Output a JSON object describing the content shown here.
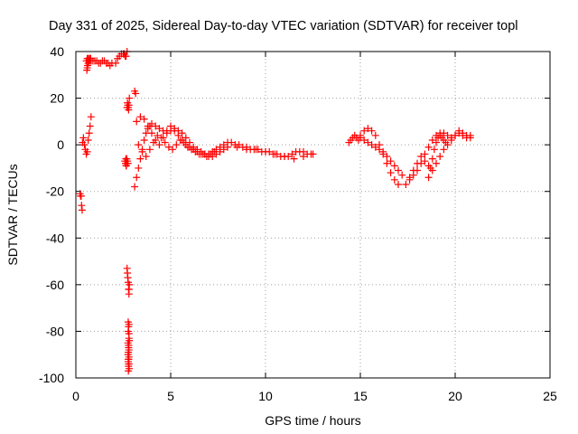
{
  "chart_data": {
    "type": "scatter",
    "title": "Day 331 of 2025, Sidereal Day-to-day VTEC variation (SDTVAR) for receiver topl",
    "xlabel": "GPS time / hours",
    "ylabel": "SDTVAR / TECUs",
    "xlim": [
      0,
      25
    ],
    "ylim": [
      -100,
      40
    ],
    "xticks": [
      "0",
      "5",
      "10",
      "15",
      "20",
      "25"
    ],
    "yticks": [
      "40",
      "20",
      "0",
      "-20",
      "-40",
      "-60",
      "-80",
      "-100"
    ],
    "grid": true,
    "marker": "+",
    "color": "#ff0000",
    "series": [
      {
        "name": "SDTVAR",
        "x": [
          0.22,
          0.25,
          0.28,
          0.3,
          0.33,
          0.35,
          0.4,
          0.45,
          0.5,
          0.55,
          0.6,
          0.65,
          0.7,
          0.75,
          0.8,
          0.58,
          0.6,
          0.62,
          0.65,
          0.68,
          0.7,
          0.72,
          0.75,
          0.78,
          0.55,
          0.6,
          0.65,
          0.72,
          0.8,
          0.9,
          1.0,
          1.1,
          1.2,
          1.3,
          1.4,
          1.5,
          1.6,
          1.7,
          1.8,
          1.9,
          2.1,
          2.2,
          2.3,
          2.4,
          2.5,
          2.55,
          2.6,
          2.65,
          2.7,
          2.58,
          2.62,
          2.65,
          2.68,
          2.72,
          2.75,
          2.78,
          2.8,
          2.82,
          2.64,
          2.66,
          2.7,
          2.72,
          2.74,
          2.76,
          2.7,
          2.72,
          2.74,
          2.76,
          2.78,
          2.8,
          2.82,
          2.76,
          2.78,
          2.8,
          2.82,
          2.78,
          2.8,
          2.75,
          2.77,
          2.79,
          2.81,
          2.77,
          2.8,
          2.78,
          2.76,
          2.8,
          2.76,
          2.78,
          2.8,
          2.78,
          2.75,
          2.8,
          2.77,
          2.79,
          3.1,
          3.15,
          3.1,
          3.2,
          3.3,
          3.4,
          3.5,
          3.6,
          3.7,
          3.8,
          3.9,
          4.0,
          4.2,
          4.4,
          4.6,
          4.8,
          5.0,
          5.2,
          5.4,
          5.6,
          5.8,
          6.0,
          6.2,
          6.4,
          6.6,
          6.8,
          7.0,
          7.2,
          7.4,
          7.6,
          7.8,
          8.0,
          8.2,
          8.4,
          8.6,
          8.8,
          9.0,
          9.2,
          9.4,
          9.6,
          9.8,
          10.0,
          10.2,
          10.4,
          10.6,
          10.8,
          11.0,
          11.2,
          11.4,
          11.6,
          11.8,
          12.0,
          12.2,
          12.4,
          12.5,
          3.2,
          3.4,
          3.6,
          3.8,
          4.0,
          4.2,
          4.4,
          4.6,
          4.8,
          5.0,
          5.2,
          5.4,
          5.6,
          5.8,
          6.0,
          6.2,
          6.4,
          6.6,
          6.8,
          7.0,
          7.2,
          7.4,
          7.6,
          7.8,
          8.0,
          8.5,
          9.0,
          9.5,
          10.0,
          10.5,
          11.0,
          11.5,
          12.0,
          12.5,
          3.3,
          3.5,
          3.7,
          3.9,
          4.1,
          4.3,
          4.5,
          4.7,
          4.9,
          5.1,
          5.3,
          5.5,
          5.7,
          5.9,
          6.1,
          6.3,
          6.5,
          6.7,
          6.9,
          7.1,
          7.3,
          14.4,
          14.5,
          14.6,
          14.7,
          14.8,
          14.9,
          15.0,
          15.2,
          15.4,
          15.6,
          15.8,
          16.0,
          16.2,
          16.4,
          16.6,
          16.8,
          17.0,
          15.0,
          15.2,
          15.4,
          15.6,
          15.8,
          16.0,
          16.2,
          16.4,
          16.6,
          16.8,
          17.0,
          17.2,
          17.4,
          17.6,
          17.8,
          18.0,
          18.2,
          18.4,
          18.6,
          18.8,
          19.0,
          19.2,
          19.4,
          19.6,
          19.8,
          20.0,
          20.2,
          20.4,
          20.6,
          20.8,
          17.6,
          17.8,
          18.0,
          18.2,
          18.4,
          18.6,
          18.8,
          19.0,
          19.2,
          19.4,
          19.6,
          19.8,
          20.0,
          20.2,
          20.4,
          20.6,
          20.8,
          18.6,
          18.7,
          18.8,
          18.9,
          19.0,
          19.1,
          19.2,
          19.3,
          19.4,
          19.5
        ],
        "y": [
          -21,
          -22,
          -22,
          -26,
          -28,
          1,
          3,
          0,
          -2,
          -4,
          -3,
          2,
          5,
          8,
          12,
          32,
          33,
          34,
          35,
          36,
          36,
          37,
          37,
          37,
          36,
          37,
          37,
          36,
          36,
          36,
          36,
          36,
          35,
          35,
          36,
          36,
          35,
          35,
          34,
          35,
          35,
          37,
          38,
          39,
          39,
          39,
          38,
          38,
          40,
          -7,
          -8,
          -9,
          -6,
          -7,
          -8,
          15,
          17,
          20,
          -6,
          -9,
          16,
          18,
          17,
          16,
          -53,
          -55,
          -57,
          -59,
          -62,
          -64,
          -60,
          -76,
          -78,
          -81,
          -84,
          -86,
          -88,
          -90,
          -92,
          -94,
          -96,
          -89,
          -91,
          -92,
          -80,
          -83,
          -93,
          -95,
          -77,
          -87,
          -85,
          -62,
          -97,
          -94,
          23,
          22,
          -18,
          -14,
          -10,
          -6,
          -2,
          2,
          5,
          7,
          8,
          9,
          8,
          7,
          6,
          5,
          6,
          7,
          6,
          5,
          3,
          1,
          -1,
          -2,
          -3,
          -4,
          -4,
          -3,
          -2,
          -1,
          0,
          1,
          1,
          0,
          0,
          -1,
          -1,
          -2,
          -2,
          -2,
          -3,
          -3,
          -3,
          -4,
          -4,
          -5,
          -5,
          -5,
          -4,
          -3,
          -3,
          -3,
          -4,
          -4,
          -4,
          10,
          12,
          11,
          8,
          5,
          2,
          0,
          3,
          6,
          8,
          6,
          4,
          2,
          0,
          -1,
          -2,
          -3,
          -4,
          -4,
          -5,
          -5,
          -4,
          -3,
          -2,
          -1,
          -1,
          -2,
          -2,
          -3,
          -4,
          -5,
          -6,
          -5,
          -4,
          0,
          -3,
          -5,
          -2,
          1,
          4,
          3,
          1,
          -1,
          -2,
          0,
          2,
          1,
          -1,
          -2,
          -3,
          -4,
          -4,
          -5,
          -4,
          -3,
          1,
          2,
          3,
          4,
          3,
          2,
          4,
          6,
          7,
          6,
          4,
          0,
          -4,
          -8,
          -12,
          -15,
          -17,
          3,
          2,
          1,
          0,
          -1,
          -2,
          -3,
          -5,
          -7,
          -9,
          -11,
          -13,
          -17,
          -15,
          -13,
          -11,
          -8,
          -4,
          -1,
          2,
          4,
          5,
          5,
          4,
          3,
          4,
          5,
          4,
          3,
          3,
          -14,
          -11,
          -8,
          -5,
          -7,
          -9,
          -11,
          -8,
          -5,
          -2,
          0,
          2,
          4,
          6,
          5,
          4,
          4,
          -14,
          -10,
          -6,
          -2,
          1,
          3,
          4,
          3,
          2,
          1
        ]
      }
    ]
  }
}
